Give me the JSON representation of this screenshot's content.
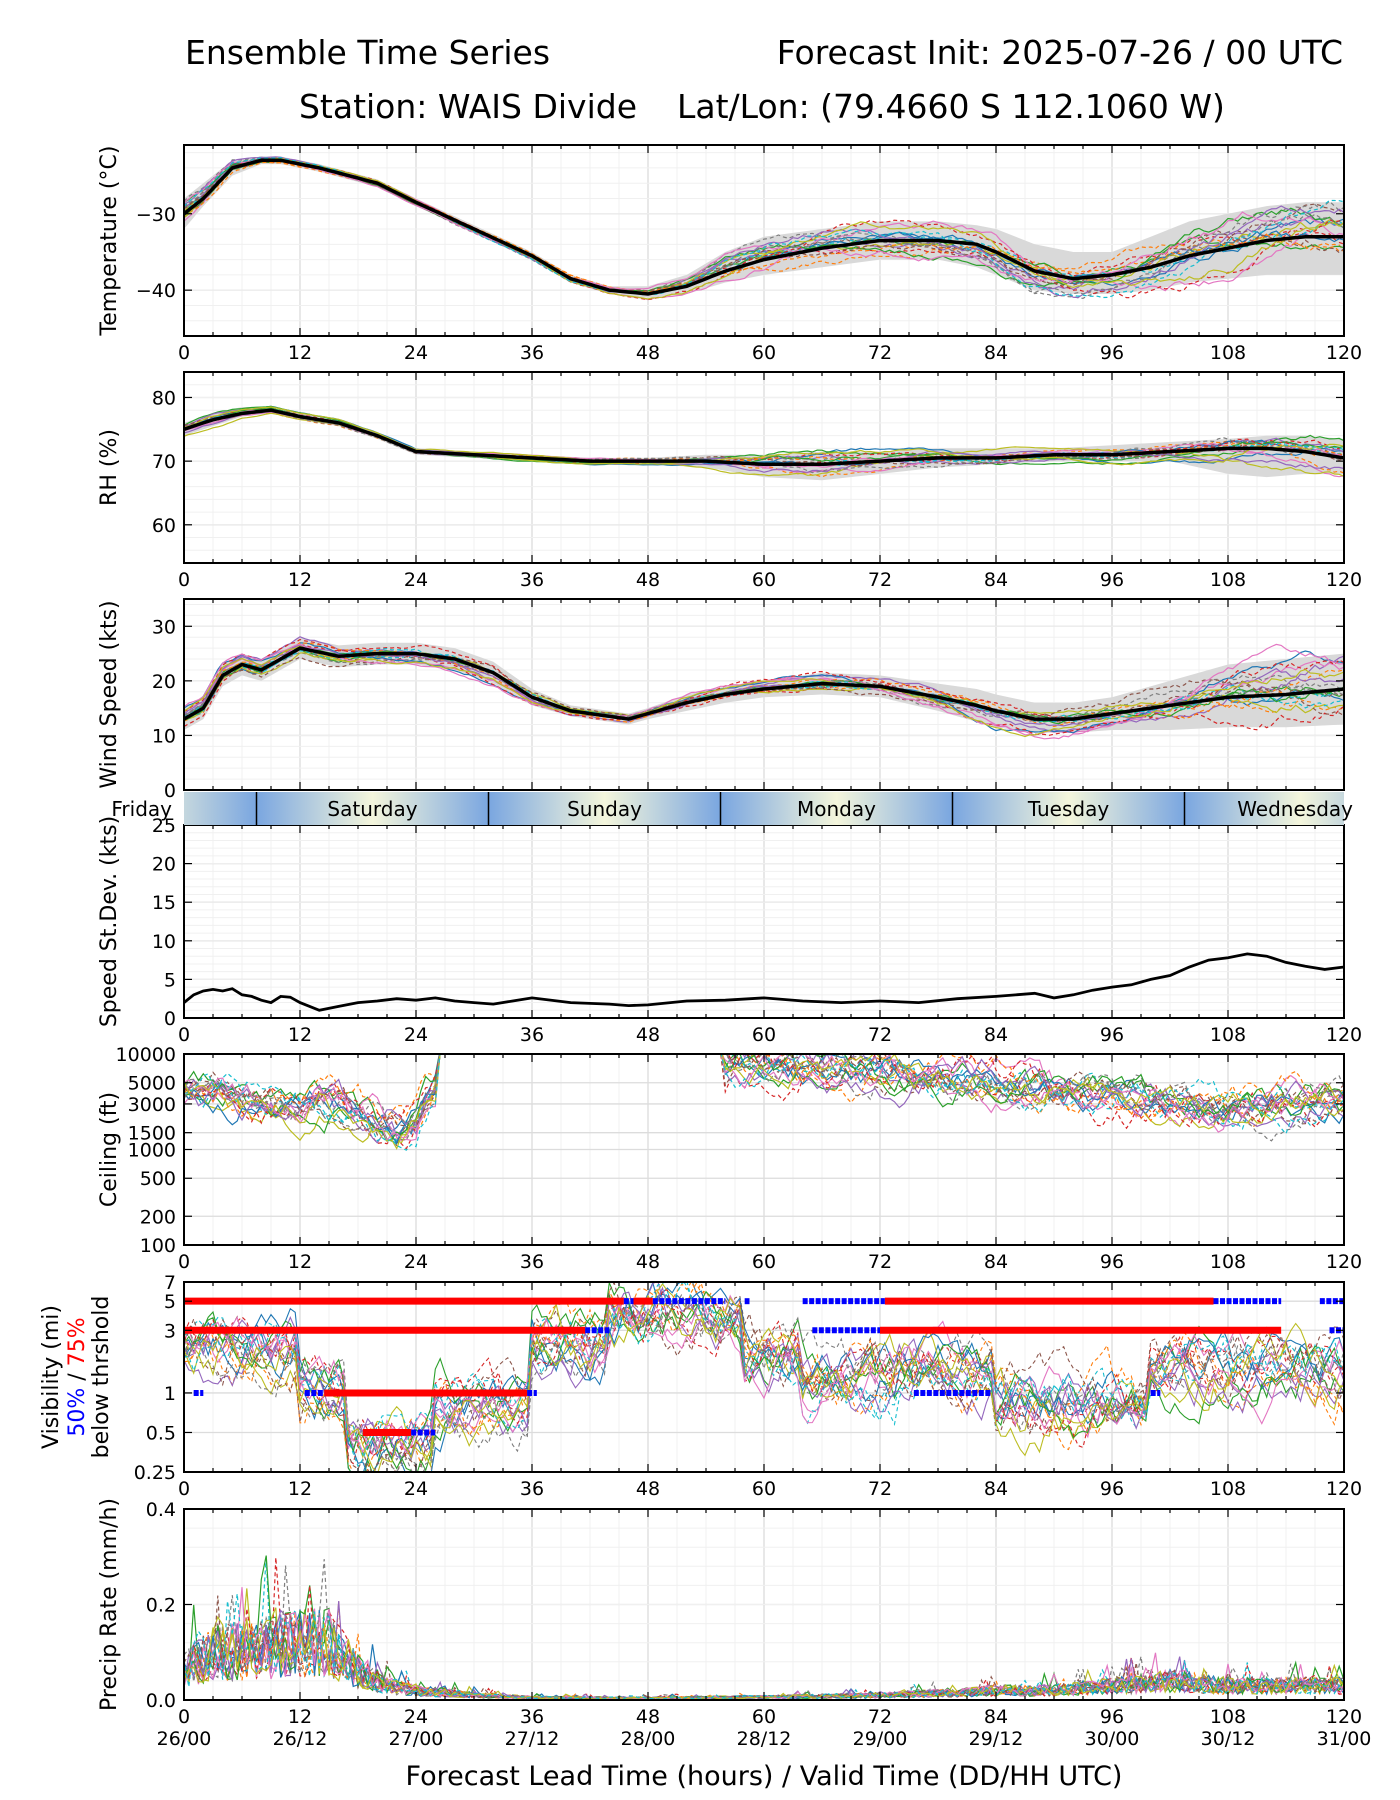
{
  "header": {
    "title_left": "Ensemble Time Series",
    "title_right": "Forecast Init: 2025-07-26 / 00 UTC",
    "station": "Station: WAIS Divide",
    "latlon": "Lat/Lon: (79.4660 S 112.1060 W)"
  },
  "xaxis": {
    "label": "Forecast Lead Time (hours) / Valid Time (DD/HH UTC)",
    "ticks": [
      0,
      12,
      24,
      36,
      48,
      60,
      72,
      84,
      96,
      108,
      120
    ],
    "tick_labels": [
      "0",
      "12",
      "24",
      "36",
      "48",
      "60",
      "72",
      "84",
      "96",
      "108",
      "120"
    ],
    "valid_time_labels": [
      "26/00",
      "26/12",
      "27/00",
      "27/12",
      "28/00",
      "28/12",
      "29/00",
      "29/12",
      "30/00",
      "30/12",
      "31/00"
    ],
    "range": [
      0,
      120
    ]
  },
  "day_band": {
    "days": [
      {
        "label": "Friday",
        "start": -17,
        "end": 7.5
      },
      {
        "label": "Saturday",
        "start": 7.5,
        "end": 31.5
      },
      {
        "label": "Sunday",
        "start": 31.5,
        "end": 55.5
      },
      {
        "label": "Monday",
        "start": 55.5,
        "end": 79.5
      },
      {
        "label": "Tuesday",
        "start": 79.5,
        "end": 103.5
      },
      {
        "label": "Wednesday",
        "start": 103.5,
        "end": 127.5
      }
    ],
    "colors": {
      "dark": "#7aa6e0",
      "light": "#f4f6dc"
    }
  },
  "chart_data": [
    {
      "type": "line",
      "id": "temperature",
      "ylabel": "Temperature (°C)",
      "ylim": [
        -46,
        -21
      ],
      "yticks": [
        -30,
        -40
      ],
      "ytick_labels": [
        "−30",
        "−40"
      ],
      "grid": true,
      "mean": {
        "x": [
          0,
          2,
          5,
          8,
          10,
          14,
          20,
          24,
          30,
          36,
          40,
          44,
          48,
          52,
          56,
          60,
          66,
          72,
          78,
          82,
          84,
          88,
          92,
          96,
          100,
          104,
          108,
          112,
          116,
          120
        ],
        "y": [
          -30,
          -28,
          -24,
          -23,
          -23,
          -24,
          -26,
          -28.5,
          -32,
          -35.5,
          -38.5,
          -40,
          -40.5,
          -39.5,
          -37.5,
          -36,
          -34.5,
          -33.5,
          -33.5,
          -34,
          -35,
          -37.5,
          -38.5,
          -38,
          -37,
          -35.5,
          -34.5,
          -33.5,
          -33,
          -33
        ]
      },
      "spread": {
        "lower": [
          -32,
          -29,
          -25,
          -23.5,
          -23.5,
          -24.5,
          -26.5,
          -29,
          -32.5,
          -36,
          -39,
          -40.5,
          -41,
          -40.5,
          -39,
          -38,
          -37,
          -36,
          -36,
          -37,
          -38,
          -40,
          -40.5,
          -40.5,
          -40,
          -39,
          -38.5,
          -38,
          -38,
          -38
        ],
        "upper": [
          -28,
          -26,
          -23,
          -22.5,
          -22.5,
          -23.5,
          -25.5,
          -28,
          -31.5,
          -35,
          -38,
          -39.5,
          -39.5,
          -38,
          -35,
          -33,
          -32,
          -31,
          -31,
          -31.5,
          -32,
          -34,
          -35,
          -35,
          -33,
          -31,
          -30,
          -29,
          -28.5,
          -28.5
        ]
      }
    },
    {
      "type": "line",
      "id": "rh",
      "ylabel": "RH (%)",
      "ylim": [
        54,
        84
      ],
      "yticks": [
        80,
        70,
        60
      ],
      "ytick_labels": [
        "80",
        "70",
        "60"
      ],
      "grid": true,
      "mean": {
        "x": [
          0,
          3,
          6,
          9,
          12,
          16,
          20,
          24,
          30,
          36,
          42,
          48,
          54,
          60,
          66,
          72,
          78,
          84,
          90,
          96,
          102,
          108,
          112,
          116,
          120
        ],
        "y": [
          75,
          76.5,
          77.5,
          78,
          77,
          76,
          74,
          71.5,
          71,
          70.5,
          70,
          70,
          70,
          69.5,
          69.5,
          70,
          70.5,
          70.5,
          71,
          71,
          71.5,
          72,
          72,
          71.5,
          70.5
        ]
      },
      "spread": {
        "lower": [
          74,
          75.5,
          77,
          77.5,
          76.5,
          75.5,
          73.5,
          71,
          70.5,
          70,
          69.5,
          69.5,
          69,
          67.5,
          67,
          68,
          69,
          69.5,
          70,
          70,
          70,
          68,
          67.5,
          68,
          68
        ],
        "upper": [
          76,
          77.5,
          78.5,
          78.5,
          77.5,
          76.5,
          74.5,
          72,
          71.5,
          71,
          70.5,
          70.5,
          71,
          71,
          71.5,
          71.5,
          72,
          72,
          72,
          72.5,
          73,
          73.5,
          74,
          74,
          73.5
        ]
      }
    },
    {
      "type": "line",
      "id": "wind_speed",
      "ylabel": "Wind Speed (kts)",
      "ylim": [
        0,
        35
      ],
      "yticks": [
        30,
        20,
        10,
        0
      ],
      "ytick_labels": [
        "30",
        "20",
        "10",
        "0"
      ],
      "grid": true,
      "mean": {
        "x": [
          0,
          2,
          4,
          6,
          8,
          10,
          12,
          16,
          20,
          24,
          28,
          32,
          36,
          40,
          44,
          46,
          48,
          52,
          56,
          60,
          66,
          72,
          78,
          82,
          84,
          88,
          92,
          96,
          102,
          108,
          114,
          120
        ],
        "y": [
          13,
          15,
          21,
          23,
          22,
          24,
          26,
          24.5,
          25,
          25,
          24,
          21.5,
          17,
          14.5,
          13.5,
          13,
          14,
          16,
          17.5,
          18.5,
          19.5,
          19,
          17,
          15.5,
          14.5,
          13,
          13,
          14,
          15.5,
          17,
          17.5,
          18.5
        ]
      },
      "spread": {
        "lower": [
          11,
          13,
          19,
          21,
          20,
          22,
          24,
          22.5,
          23,
          23,
          22,
          19.5,
          15.5,
          13.5,
          12.5,
          12,
          13,
          14.5,
          16,
          17,
          17.5,
          17,
          14.5,
          12.5,
          11.5,
          10.5,
          10.5,
          11,
          11,
          11.5,
          11.5,
          12
        ]
      },
      "spread_upper": [
        15,
        17,
        23,
        25,
        24,
        26,
        28,
        26.5,
        27,
        27,
        26,
        23.5,
        18.5,
        15.5,
        14.5,
        14,
        15,
        17.5,
        19,
        20,
        21.5,
        21,
        19.5,
        18.5,
        17.5,
        16,
        16,
        17,
        20,
        23,
        24,
        25
      ]
    },
    {
      "type": "line",
      "id": "speed_stdev",
      "ylabel": "Speed St.Dev. (kts)",
      "ylim": [
        0,
        25
      ],
      "yticks": [
        25,
        20,
        15,
        10,
        5,
        0
      ],
      "ytick_labels": [
        "25",
        "20",
        "15",
        "10",
        "5",
        "0"
      ],
      "grid": true,
      "series": [
        {
          "x": [
            0,
            1,
            2,
            3,
            4,
            5,
            6,
            7,
            8,
            9,
            10,
            11,
            12,
            13,
            14,
            16,
            18,
            20,
            22,
            24,
            26,
            28,
            30,
            32,
            34,
            36,
            40,
            44,
            46,
            48,
            52,
            56,
            60,
            64,
            68,
            72,
            76,
            80,
            84,
            88,
            90,
            92,
            94,
            96,
            98,
            100,
            102,
            104,
            106,
            108,
            110,
            112,
            114,
            116,
            118,
            120
          ],
          "y": [
            2,
            3,
            3.5,
            3.7,
            3.5,
            3.8,
            3,
            2.8,
            2.3,
            2,
            2.8,
            2.7,
            2,
            1.5,
            1,
            1.5,
            2,
            2.2,
            2.5,
            2.3,
            2.6,
            2.2,
            2,
            1.8,
            2.2,
            2.6,
            2,
            1.8,
            1.6,
            1.7,
            2.2,
            2.3,
            2.6,
            2.2,
            2,
            2.2,
            2,
            2.5,
            2.8,
            3.2,
            2.6,
            3,
            3.6,
            4,
            4.3,
            5,
            5.5,
            6.6,
            7.5,
            7.8,
            8.3,
            8,
            7.2,
            6.7,
            6.3,
            6.6
          ]
        }
      ]
    },
    {
      "type": "line",
      "id": "ceiling",
      "ylabel": "Ceiling (ft)",
      "scale": "log",
      "ylim": [
        100,
        10000
      ],
      "yticks": [
        10000,
        5000,
        3000,
        1500,
        1000,
        500,
        200,
        100
      ],
      "ytick_labels": [
        "10000",
        "5000",
        "3000",
        "1500",
        "1000",
        "500",
        "200",
        "100"
      ],
      "grid": true,
      "mean": {
        "x": [
          0,
          4,
          8,
          12,
          14,
          16,
          20,
          22,
          24,
          26,
          28,
          30,
          56,
          60,
          66,
          72,
          78,
          84,
          90,
          96,
          102,
          108,
          114,
          120
        ],
        "y": [
          3800,
          4000,
          3000,
          2700,
          3500,
          3000,
          2000,
          1600,
          2000,
          4500,
          8000,
          10000,
          8000,
          7500,
          7000,
          6500,
          5500,
          5000,
          4000,
          3500,
          3000,
          2800,
          3000,
          3200
        ]
      }
    },
    {
      "type": "line",
      "id": "visibility",
      "ylabel": "Visibility (mi)",
      "ylabel_pct50": "50%",
      "ylabel_sep": " / ",
      "ylabel_pct75": "75%",
      "ylabel_note": "below thrshold",
      "scale": "log",
      "ylim": [
        0.25,
        7
      ],
      "yticks": [
        7,
        5,
        3,
        1,
        0.5,
        0.25
      ],
      "ytick_labels": [
        "7",
        "5",
        "3",
        "1",
        "0.5",
        "0.25"
      ],
      "grid": true,
      "threshold_75": [
        {
          "level": 5,
          "start": 0,
          "end": 45.5
        },
        {
          "level": 5,
          "start": 46.5,
          "end": 48.5
        },
        {
          "level": 5,
          "start": 72.5,
          "end": 106.5
        },
        {
          "level": 3,
          "start": 0,
          "end": 41.5
        },
        {
          "level": 3,
          "start": 72,
          "end": 113.5
        },
        {
          "level": 1,
          "start": 14.5,
          "end": 35.5
        },
        {
          "level": 0.5,
          "start": 18.5,
          "end": 23.5
        }
      ],
      "threshold_50": [
        {
          "level": 5,
          "start": 45.5,
          "end": 46.5
        },
        {
          "level": 5,
          "start": 48.5,
          "end": 56
        },
        {
          "level": 5,
          "start": 58,
          "end": 58.5
        },
        {
          "level": 5,
          "start": 64,
          "end": 72.5
        },
        {
          "level": 5,
          "start": 106.5,
          "end": 113.5
        },
        {
          "level": 5,
          "start": 117.5,
          "end": 120
        },
        {
          "level": 3,
          "start": 41.5,
          "end": 44
        },
        {
          "level": 3,
          "start": 65,
          "end": 72
        },
        {
          "level": 3,
          "start": 118.5,
          "end": 120
        },
        {
          "level": 1,
          "start": 1,
          "end": 2
        },
        {
          "level": 1,
          "start": 12.5,
          "end": 14.5
        },
        {
          "level": 1,
          "start": 35.5,
          "end": 36.5
        },
        {
          "level": 1,
          "start": 75.5,
          "end": 83.5
        },
        {
          "level": 1,
          "start": 100,
          "end": 101
        },
        {
          "level": 0.5,
          "start": 23.5,
          "end": 26
        }
      ],
      "threshold_colors": {
        "p75": "#ff0000",
        "p50": "#0000ff"
      }
    },
    {
      "type": "line",
      "id": "precip_rate",
      "ylabel": "Precip Rate (mm/h)",
      "ylim": [
        0,
        0.4
      ],
      "yticks": [
        0.4,
        0.2,
        0.0
      ],
      "ytick_labels": [
        "0.4",
        "0.2",
        "0.0"
      ],
      "grid": true,
      "mean": {
        "x": [
          0,
          3,
          6,
          9,
          12,
          15,
          18,
          21,
          24,
          30,
          36,
          48,
          60,
          72,
          80,
          84,
          90,
          96,
          102,
          108,
          114,
          120
        ],
        "y": [
          0.06,
          0.1,
          0.1,
          0.11,
          0.12,
          0.12,
          0.06,
          0.03,
          0.02,
          0.01,
          0.005,
          0.004,
          0.006,
          0.01,
          0.015,
          0.02,
          0.02,
          0.03,
          0.04,
          0.03,
          0.03,
          0.03
        ]
      }
    }
  ],
  "colors": {
    "mean": "#000000",
    "spread": "#d9d9d9",
    "members": [
      "#1f77b4",
      "#ff7f0e",
      "#2ca02c",
      "#d62728",
      "#9467bd",
      "#8c564b",
      "#e377c2",
      "#7f7f7f",
      "#bcbd22",
      "#17becf"
    ]
  }
}
